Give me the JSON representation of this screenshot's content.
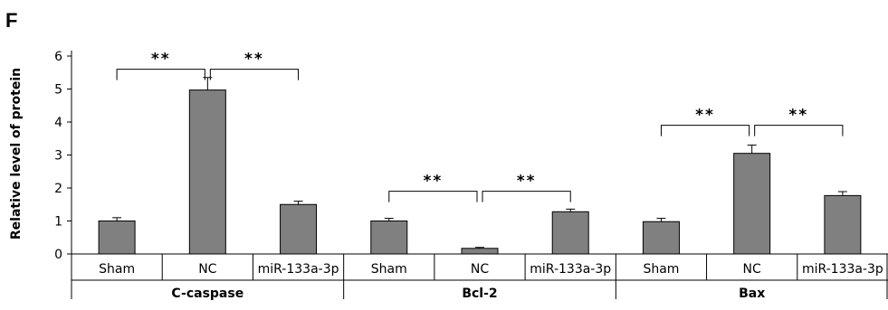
{
  "panel_label": "F",
  "chart_data": {
    "type": "bar",
    "ylabel": "Relative level of protein",
    "xlabel": "",
    "ylim": [
      0,
      6
    ],
    "yticks": [
      0,
      1,
      2,
      3,
      4,
      5,
      6
    ],
    "grid": false,
    "legend": "none",
    "bar_color": "#808080",
    "groups": [
      {
        "name": "C-caspase",
        "categories": [
          "Sham",
          "NC",
          "miR-133a-3p"
        ],
        "values": [
          1.0,
          4.97,
          1.5
        ],
        "errors": [
          0.1,
          0.38,
          0.1
        ],
        "comparisons": [
          {
            "from": 0,
            "to": 1,
            "label": "**",
            "level": 5.6
          },
          {
            "from": 1,
            "to": 2,
            "label": "**",
            "level": 5.6
          }
        ]
      },
      {
        "name": "Bcl-2",
        "categories": [
          "Sham",
          "NC",
          "miR-133a-3p"
        ],
        "values": [
          1.0,
          0.17,
          1.28
        ],
        "errors": [
          0.08,
          0.03,
          0.08
        ],
        "comparisons": [
          {
            "from": 0,
            "to": 1,
            "label": "**",
            "level": 1.9
          },
          {
            "from": 1,
            "to": 2,
            "label": "**",
            "level": 1.9
          }
        ]
      },
      {
        "name": "Bax",
        "categories": [
          "Sham",
          "NC",
          "miR-133a-3p"
        ],
        "values": [
          0.98,
          3.05,
          1.77
        ],
        "errors": [
          0.1,
          0.25,
          0.12
        ],
        "comparisons": [
          {
            "from": 0,
            "to": 1,
            "label": "**",
            "level": 3.9
          },
          {
            "from": 1,
            "to": 2,
            "label": "**",
            "level": 3.9
          }
        ]
      }
    ]
  }
}
